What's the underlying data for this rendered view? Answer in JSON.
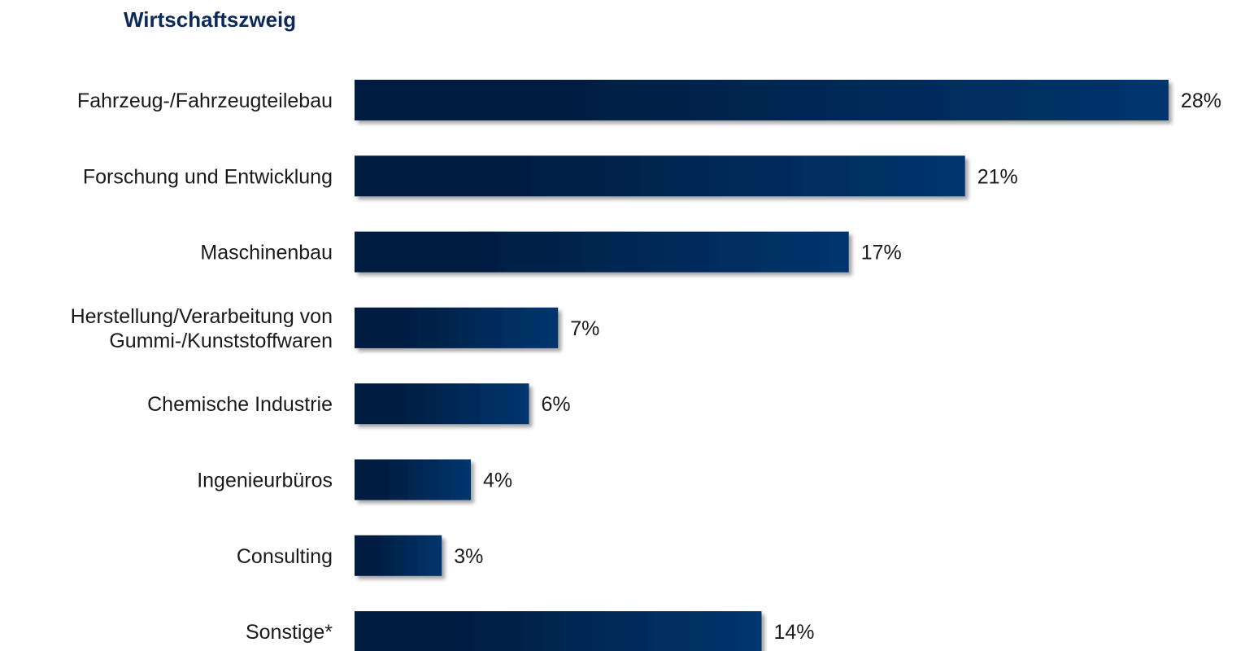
{
  "chart_data": {
    "type": "bar",
    "orientation": "horizontal",
    "title": "Wirtschaftszweig",
    "categories": [
      [
        "Fahrzeug-/Fahrzeugteilebau"
      ],
      [
        "Forschung und Entwicklung"
      ],
      [
        "Maschinenbau"
      ],
      [
        "Herstellung/Verarbeitung von",
        "Gummi-/Kunststoffwaren"
      ],
      [
        "Chemische Industrie"
      ],
      [
        "Ingenieurbüros"
      ],
      [
        "Consulting"
      ],
      [
        "Sonstige*"
      ]
    ],
    "values": [
      28,
      21,
      17,
      7,
      6,
      4,
      3,
      14
    ],
    "value_labels": [
      "28%",
      "21%",
      "17%",
      "7%",
      "6%",
      "4%",
      "3%",
      "14%"
    ],
    "unit": "%",
    "xlim": [
      0,
      28
    ],
    "grid": false,
    "legend": "none",
    "colors": {
      "bar_dark": "#031d3f",
      "bar_light": "#06356f",
      "shadow": "#9a9a9a",
      "title": "#0b2a5b"
    }
  }
}
